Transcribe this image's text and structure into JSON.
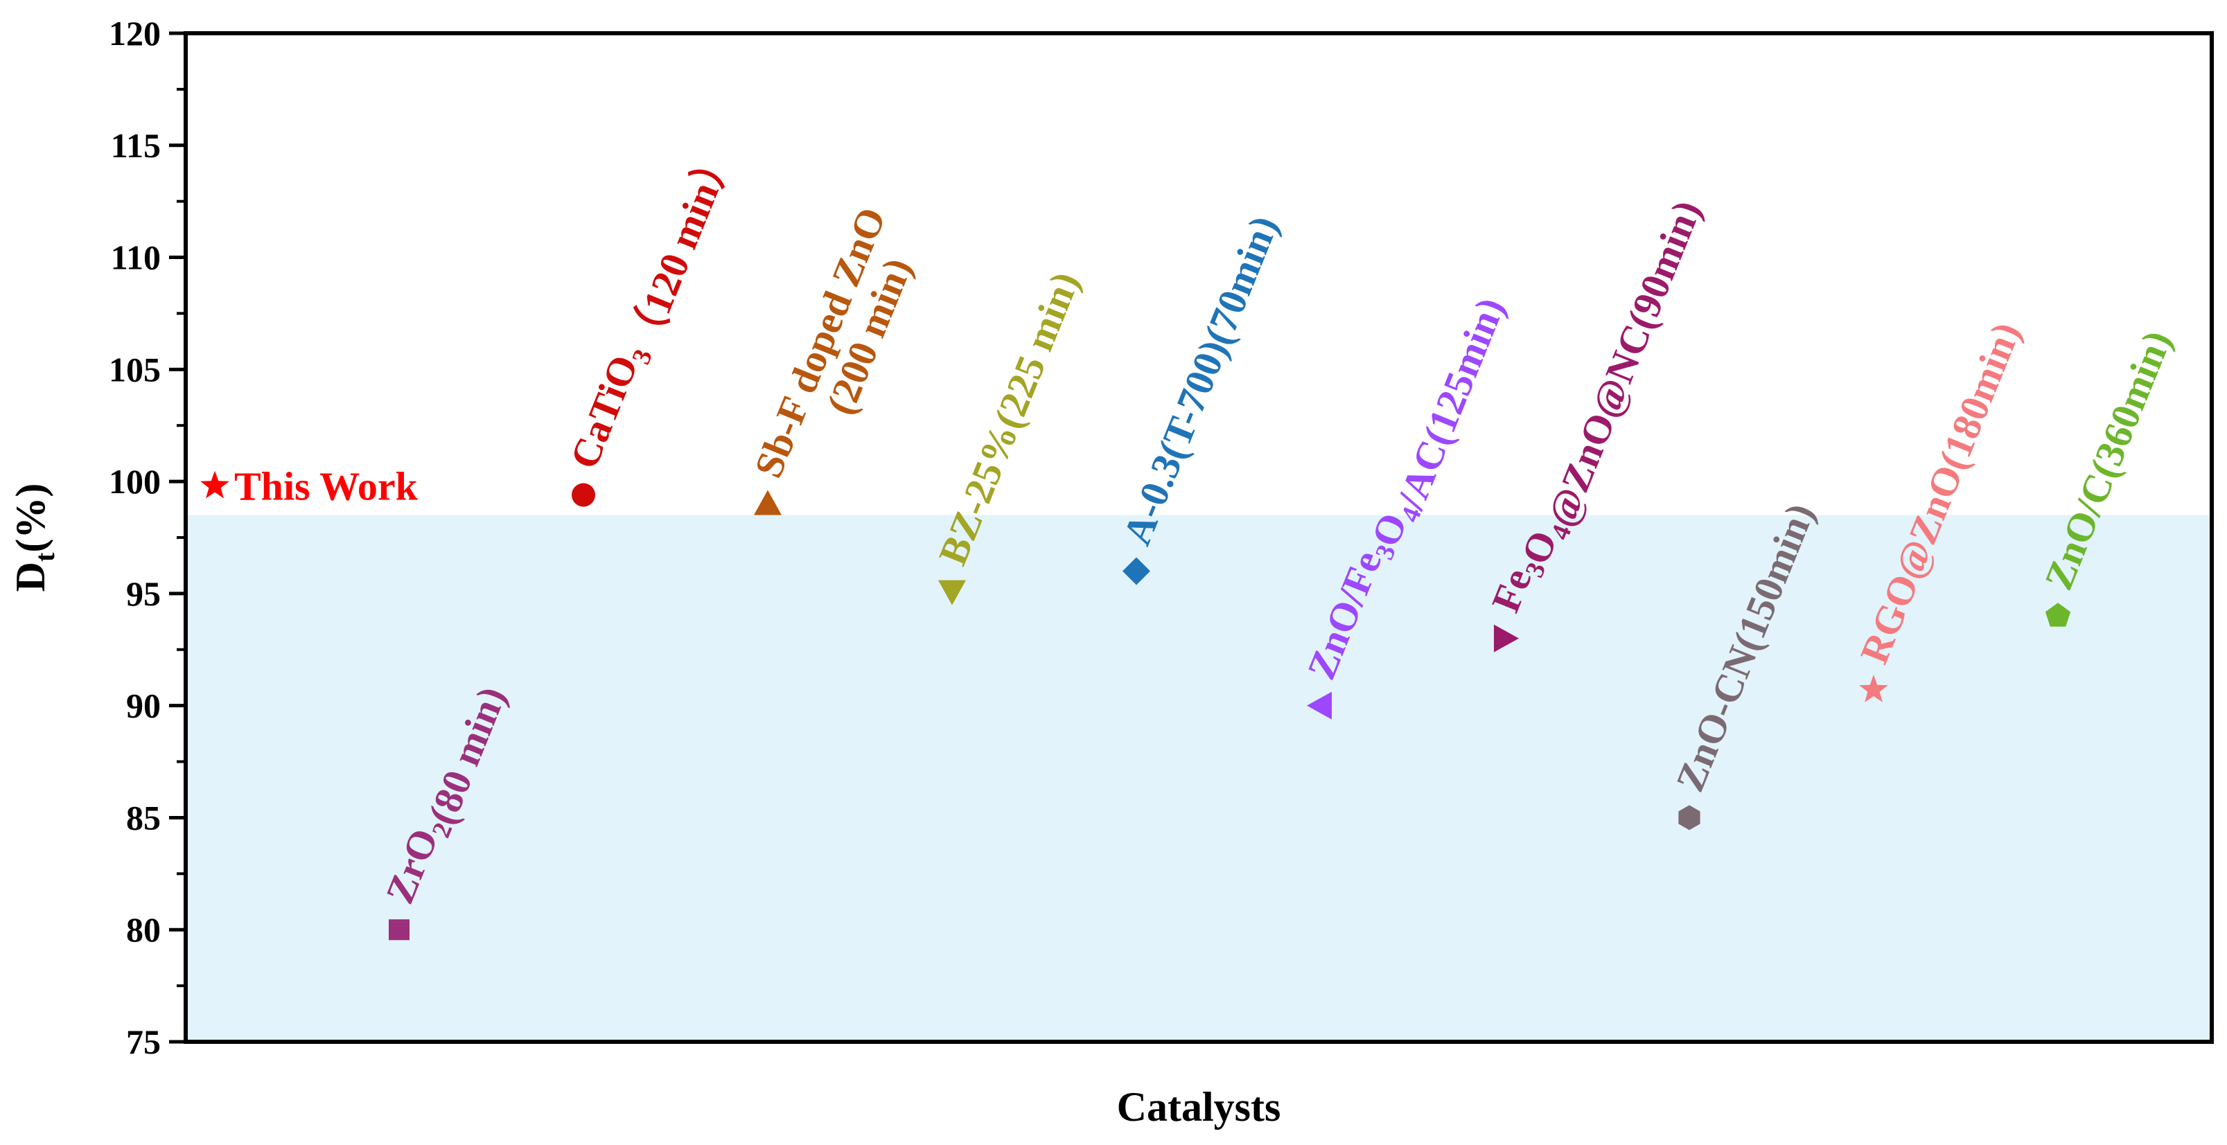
{
  "chart_data": {
    "type": "scatter",
    "title": "",
    "xlabel": "Catalysts",
    "ylabel": "Dt(%)",
    "ylabel_main": "D",
    "ylabel_sub": "t",
    "ylabel_rest": "(%)",
    "ylim": [
      75,
      120
    ],
    "yticks": [
      75,
      80,
      85,
      90,
      95,
      100,
      105,
      110,
      115,
      120
    ],
    "shaded_band": {
      "from": 75,
      "to": 98.5,
      "color": "#e2f3fb"
    },
    "grid": false,
    "series": [
      {
        "name": "This Work",
        "x": 0,
        "y": 99.8,
        "color": "#ff0000",
        "marker": "star",
        "label": [
          {
            "t": "This Work"
          }
        ],
        "rotated": false
      },
      {
        "name": "ZrO2(80 min)",
        "x": 1,
        "y": 80,
        "color": "#9b2f7c",
        "marker": "square",
        "label": [
          {
            "t": "ZrO"
          },
          {
            "t": "2",
            "sub": true
          },
          {
            "t": "(80 min)"
          }
        ],
        "rotated": true
      },
      {
        "name": "CaTiO3 (120 min)",
        "x": 2,
        "y": 99.4,
        "color": "#d10a0a",
        "marker": "circle",
        "label": [
          {
            "t": "CaTiO"
          },
          {
            "t": "3",
            "sub": true
          },
          {
            "t": "（120 min）"
          }
        ],
        "rotated": true
      },
      {
        "name": "Sb-F doped ZnO (200 min)",
        "x": 3,
        "y": 99,
        "color": "#b8570e",
        "marker": "triangle-up",
        "label": [
          {
            "t": "Sb-F doped ZnO"
          }
        ],
        "label2": [
          {
            "t": "(200 min)"
          }
        ],
        "rotated": true
      },
      {
        "name": "BZ-25%(225 min)",
        "x": 4,
        "y": 95.1,
        "color": "#a3a524",
        "marker": "triangle-down",
        "label": [
          {
            "t": "BZ-25%(225 min)"
          }
        ],
        "rotated": true
      },
      {
        "name": "A-0.3(T-700)(70min)",
        "x": 5,
        "y": 96,
        "color": "#1f74b8",
        "marker": "diamond",
        "label": [
          {
            "t": "A-0.3(T-700)(70min)"
          }
        ],
        "rotated": true
      },
      {
        "name": "ZnO/Fe3O4/AC(125min)",
        "x": 6,
        "y": 90,
        "color": "#9d47ff",
        "marker": "triangle-left",
        "label": [
          {
            "t": "ZnO/Fe"
          },
          {
            "t": "3",
            "sub": true
          },
          {
            "t": "O"
          },
          {
            "t": "4",
            "sub": true
          },
          {
            "t": "/AC(125min)"
          }
        ],
        "rotated": true
      },
      {
        "name": "Fe3O4@ZnO@NC(90min)",
        "x": 7,
        "y": 93,
        "color": "#9c1a6a",
        "marker": "triangle-right",
        "label": [
          {
            "t": "Fe"
          },
          {
            "t": "3",
            "sub": true
          },
          {
            "t": "O"
          },
          {
            "t": "4",
            "sub": true
          },
          {
            "t": "@ZnO@NC(90min)"
          }
        ],
        "rotated": true
      },
      {
        "name": "ZnO-CN(150min)",
        "x": 8,
        "y": 85,
        "color": "#7b6a72",
        "marker": "hexagon",
        "label": [
          {
            "t": "ZnO-CN(150min)"
          }
        ],
        "rotated": true
      },
      {
        "name": "RGO@ZnO(180min)",
        "x": 9,
        "y": 90.7,
        "color": "#f47a7e",
        "marker": "star",
        "label": [
          {
            "t": "RGO@ZnO(180min)"
          }
        ],
        "rotated": true
      },
      {
        "name": "ZnO/C(360min)",
        "x": 10,
        "y": 94,
        "color": "#6cb62b",
        "marker": "pentagon",
        "label": [
          {
            "t": "ZnO/C(360min)"
          }
        ],
        "rotated": true
      }
    ]
  }
}
